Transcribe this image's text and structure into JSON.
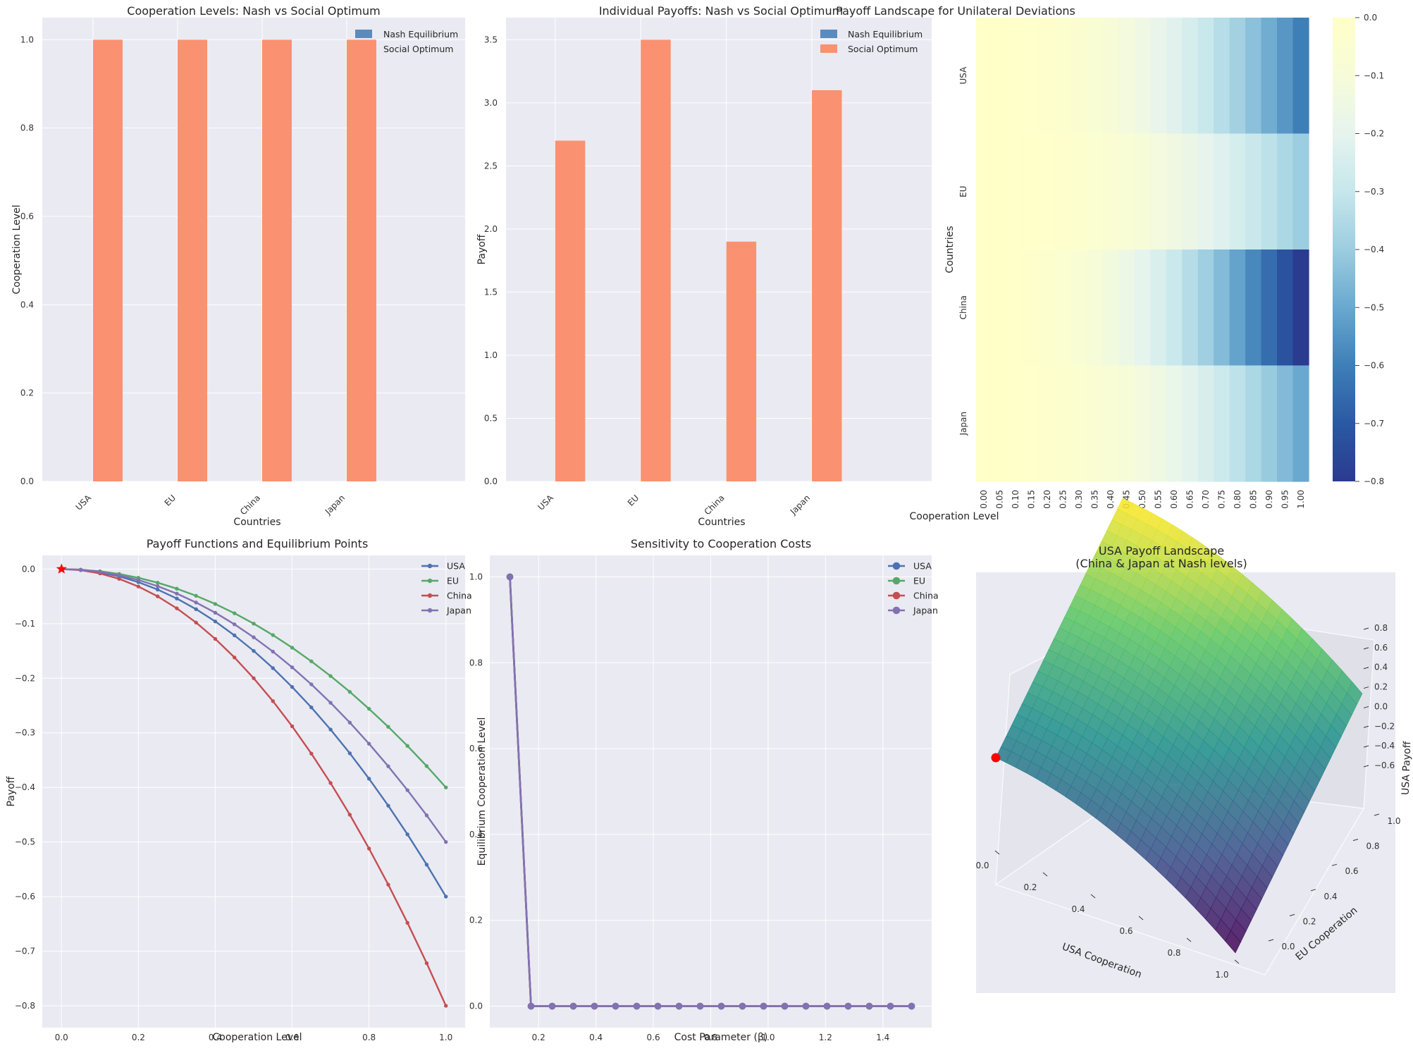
{
  "colors": {
    "nash": "#5b8bbd",
    "social": "#fa9170",
    "usa": "#4c72b0",
    "eu": "#55a868",
    "china": "#c44e52",
    "japan": "#8172b3",
    "star": "#ff0000",
    "panel_bg": "#eaeaf2",
    "grid": "#ffffff"
  },
  "chart_data": [
    {
      "type": "bar",
      "title": "Cooperation Levels: Nash vs Social Optimum",
      "xlabel": "Countries",
      "ylabel": "Cooperation Level",
      "categories": [
        "USA",
        "EU",
        "China",
        "Japan"
      ],
      "series": [
        {
          "name": "Nash Equilibrium",
          "values": [
            0,
            0,
            0,
            0
          ]
        },
        {
          "name": "Social Optimum",
          "values": [
            1.0,
            1.0,
            1.0,
            1.0
          ]
        }
      ],
      "ylim": [
        0,
        1.05
      ],
      "yticks": [
        "0.0",
        "0.2",
        "0.4",
        "0.6",
        "0.8",
        "1.0"
      ],
      "legend": "top-right",
      "grid": true
    },
    {
      "type": "bar",
      "title": "Individual Payoffs: Nash vs Social Optimum",
      "xlabel": "Countries",
      "ylabel": "Payoff",
      "categories": [
        "USA",
        "EU",
        "China",
        "Japan"
      ],
      "series": [
        {
          "name": "Nash Equilibrium",
          "values": [
            0,
            0,
            0,
            0
          ]
        },
        {
          "name": "Social Optimum",
          "values": [
            2.7,
            3.5,
            1.9,
            3.1
          ]
        }
      ],
      "ylim": [
        0,
        3.675
      ],
      "yticks": [
        "0.0",
        "0.5",
        "1.0",
        "1.5",
        "2.0",
        "2.5",
        "3.0",
        "3.5"
      ],
      "legend": "top-right",
      "grid": true
    },
    {
      "type": "heatmap",
      "title": "Payoff Landscape for Unilateral Deviations",
      "xlabel": "Cooperation Level",
      "ylabel": "Countries",
      "rows": [
        "USA",
        "EU",
        "China",
        "Japan"
      ],
      "columns": [
        "0.00",
        "0.05",
        "0.10",
        "0.15",
        "0.20",
        "0.25",
        "0.30",
        "0.35",
        "0.40",
        "0.45",
        "0.50",
        "0.55",
        "0.60",
        "0.65",
        "0.70",
        "0.75",
        "0.80",
        "0.85",
        "0.90",
        "0.95",
        "1.00"
      ],
      "row_coefficients": [
        0.6,
        0.4,
        0.8,
        0.5
      ],
      "value_rule": "value = -coefficient * cooperation_level^2",
      "colorbar": {
        "min": -0.8,
        "max": 0.0,
        "ticks": [
          "0.0",
          "−0.1",
          "−0.2",
          "−0.3",
          "−0.4",
          "−0.5",
          "−0.6",
          "−0.7",
          "−0.8"
        ],
        "colormap": "YlGnBu reversed"
      }
    },
    {
      "type": "line",
      "title": "Payoff Functions and Equilibrium Points",
      "xlabel": "Cooperation Level",
      "ylabel": "Payoff",
      "x": [
        0.0,
        0.05,
        0.1,
        0.15,
        0.2,
        0.25,
        0.3,
        0.35,
        0.4,
        0.45,
        0.5,
        0.55,
        0.6,
        0.65,
        0.7,
        0.75,
        0.8,
        0.85,
        0.9,
        0.95,
        1.0
      ],
      "series": [
        {
          "name": "USA",
          "values": [
            0.0,
            -0.0015,
            -0.006,
            -0.0135,
            -0.024,
            -0.0375,
            -0.054,
            -0.0735,
            -0.096,
            -0.1215,
            -0.15,
            -0.1815,
            -0.216,
            -0.2535,
            -0.294,
            -0.3375,
            -0.384,
            -0.4335,
            -0.486,
            -0.5415,
            -0.6
          ]
        },
        {
          "name": "EU",
          "values": [
            0.0,
            -0.001,
            -0.004,
            -0.009,
            -0.016,
            -0.025,
            -0.036,
            -0.049,
            -0.064,
            -0.081,
            -0.1,
            -0.121,
            -0.144,
            -0.169,
            -0.196,
            -0.225,
            -0.256,
            -0.289,
            -0.324,
            -0.361,
            -0.4
          ]
        },
        {
          "name": "China",
          "values": [
            0.0,
            -0.002,
            -0.008,
            -0.018,
            -0.032,
            -0.05,
            -0.072,
            -0.098,
            -0.128,
            -0.162,
            -0.2,
            -0.242,
            -0.288,
            -0.338,
            -0.392,
            -0.45,
            -0.512,
            -0.578,
            -0.648,
            -0.722,
            -0.8
          ]
        },
        {
          "name": "Japan",
          "values": [
            0.0,
            -0.00125,
            -0.005,
            -0.01125,
            -0.02,
            -0.03125,
            -0.045,
            -0.06125,
            -0.08,
            -0.10125,
            -0.125,
            -0.15125,
            -0.18,
            -0.21125,
            -0.245,
            -0.28125,
            -0.32,
            -0.36125,
            -0.405,
            -0.45125,
            -0.5
          ]
        }
      ],
      "equilibrium_point": {
        "x": 0.0,
        "y": 0.0
      },
      "xlim": [
        -0.05,
        1.05
      ],
      "ylim": [
        -0.84,
        0.025
      ],
      "xticks": [
        "0.0",
        "0.2",
        "0.4",
        "0.6",
        "0.8",
        "1.0"
      ],
      "yticks": [
        "0.0",
        "−0.1",
        "−0.2",
        "−0.3",
        "−0.4",
        "−0.5",
        "−0.6",
        "−0.7",
        "−0.8"
      ],
      "legend": "top-right",
      "grid": true
    },
    {
      "type": "line",
      "title": "Sensitivity to Cooperation Costs",
      "xlabel": "Cost Parameter (β)",
      "ylabel": "Equilibrium Cooperation Level",
      "x": [
        0.1,
        0.1737,
        0.2474,
        0.3211,
        0.3947,
        0.4684,
        0.5421,
        0.6158,
        0.6895,
        0.7632,
        0.8368,
        0.9105,
        0.9842,
        1.0579,
        1.1316,
        1.2053,
        1.2789,
        1.3526,
        1.4263,
        1.5
      ],
      "series": [
        {
          "name": "USA",
          "values": [
            1,
            0,
            0,
            0,
            0,
            0,
            0,
            0,
            0,
            0,
            0,
            0,
            0,
            0,
            0,
            0,
            0,
            0,
            0,
            0
          ]
        },
        {
          "name": "EU",
          "values": [
            1,
            0,
            0,
            0,
            0,
            0,
            0,
            0,
            0,
            0,
            0,
            0,
            0,
            0,
            0,
            0,
            0,
            0,
            0,
            0
          ]
        },
        {
          "name": "China",
          "values": [
            1,
            0,
            0,
            0,
            0,
            0,
            0,
            0,
            0,
            0,
            0,
            0,
            0,
            0,
            0,
            0,
            0,
            0,
            0,
            0
          ]
        },
        {
          "name": "Japan",
          "values": [
            1,
            0,
            0,
            0,
            0,
            0,
            0,
            0,
            0,
            0,
            0,
            0,
            0,
            0,
            0,
            0,
            0,
            0,
            0,
            0
          ]
        }
      ],
      "xlim": [
        0.03,
        1.57
      ],
      "ylim": [
        -0.05,
        1.05
      ],
      "xticks": [
        "0.2",
        "0.4",
        "0.6",
        "0.8",
        "1.0",
        "1.2",
        "1.4"
      ],
      "yticks": [
        "0.0",
        "0.2",
        "0.4",
        "0.6",
        "0.8",
        "1.0"
      ],
      "legend": "top-right",
      "grid": true
    },
    {
      "type": "surface",
      "title": "USA Payoff Landscape",
      "subtitle": "(China & Japan at Nash levels)",
      "xlabel": "USA Cooperation",
      "ylabel": "EU Cooperation",
      "zlabel": "USA Payoff",
      "xticks": [
        "0.0",
        "0.2",
        "0.4",
        "0.6",
        "0.8",
        "1.0"
      ],
      "yticks": [
        "0.0",
        "0.2",
        "0.4",
        "0.6",
        "0.8",
        "1.0"
      ],
      "zticks": [
        "0.8",
        "0.6",
        "0.4",
        "0.2",
        "0.0",
        "−0.2",
        "−0.4",
        "−0.6"
      ],
      "zlim": [
        -0.6,
        0.9
      ],
      "surface_rule": "z = 0.9 * eu_cooperation - 0.6 * usa_cooperation^2",
      "nash_point": {
        "usa": 0.0,
        "eu": 0.0,
        "payoff": 0.0
      },
      "colormap": "viridis"
    }
  ]
}
